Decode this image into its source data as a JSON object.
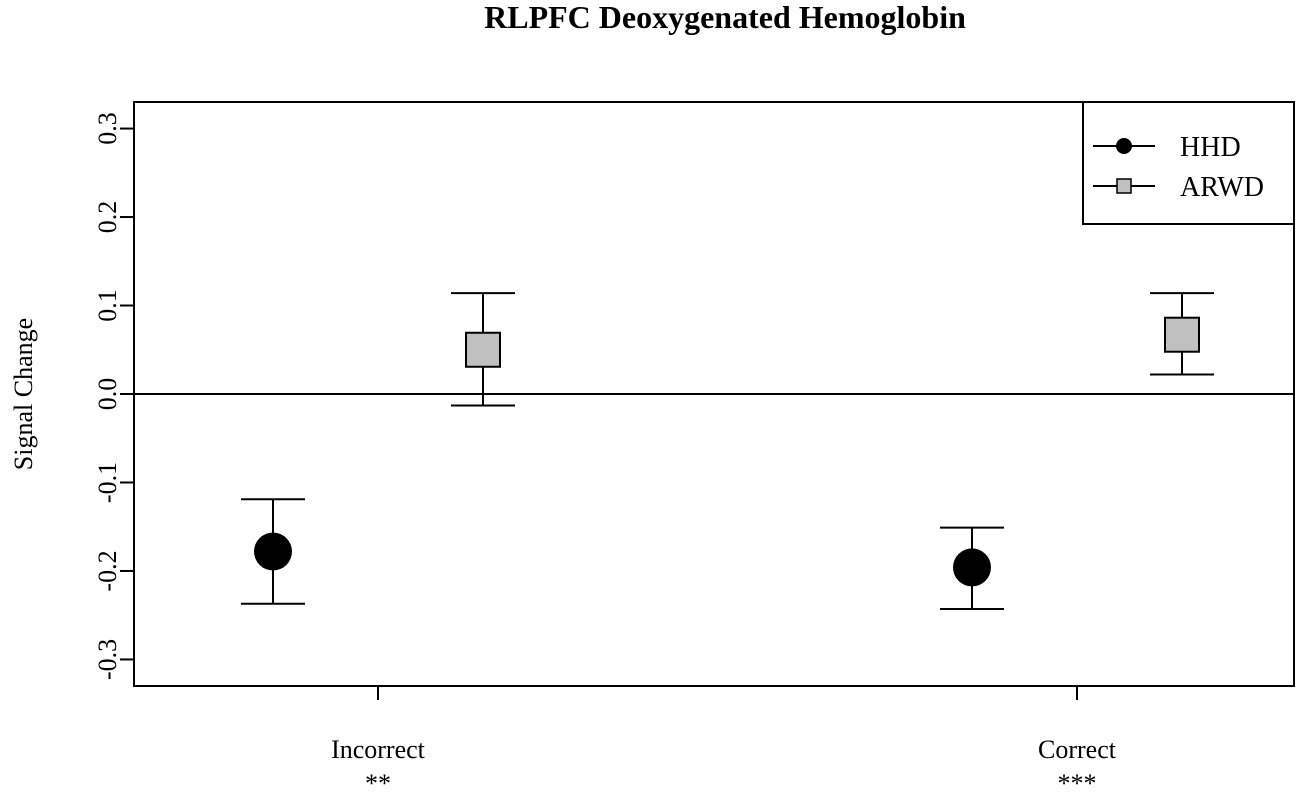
{
  "chart_data": {
    "type": "scatter",
    "title": "RLPFC Deoxygenated Hemoglobin",
    "xlabel": "",
    "ylabel": "Signal Change",
    "categories": [
      "Incorrect",
      "Correct"
    ],
    "significance": [
      "**",
      "***"
    ],
    "ylim": [
      -0.33,
      0.33
    ],
    "yticks": [
      -0.3,
      -0.2,
      -0.1,
      0.0,
      0.1,
      0.2,
      0.3
    ],
    "ytick_labels": [
      "-0.3",
      "-0.2",
      "-0.1",
      "0.0",
      "0.1",
      "0.2",
      "0.3"
    ],
    "reference_line": 0.0,
    "legend_position": "top-right",
    "grid": false,
    "series": [
      {
        "name": "HHD",
        "marker": "circle",
        "color": "#000000",
        "values": [
          -0.178,
          -0.196
        ],
        "error_low": [
          -0.237,
          -0.243
        ],
        "error_high": [
          -0.119,
          -0.151
        ]
      },
      {
        "name": "ARWD",
        "marker": "square",
        "color": "#c0c0c0",
        "values": [
          0.05,
          0.067
        ],
        "error_low": [
          -0.013,
          0.022
        ],
        "error_high": [
          0.114,
          0.114
        ]
      }
    ]
  }
}
